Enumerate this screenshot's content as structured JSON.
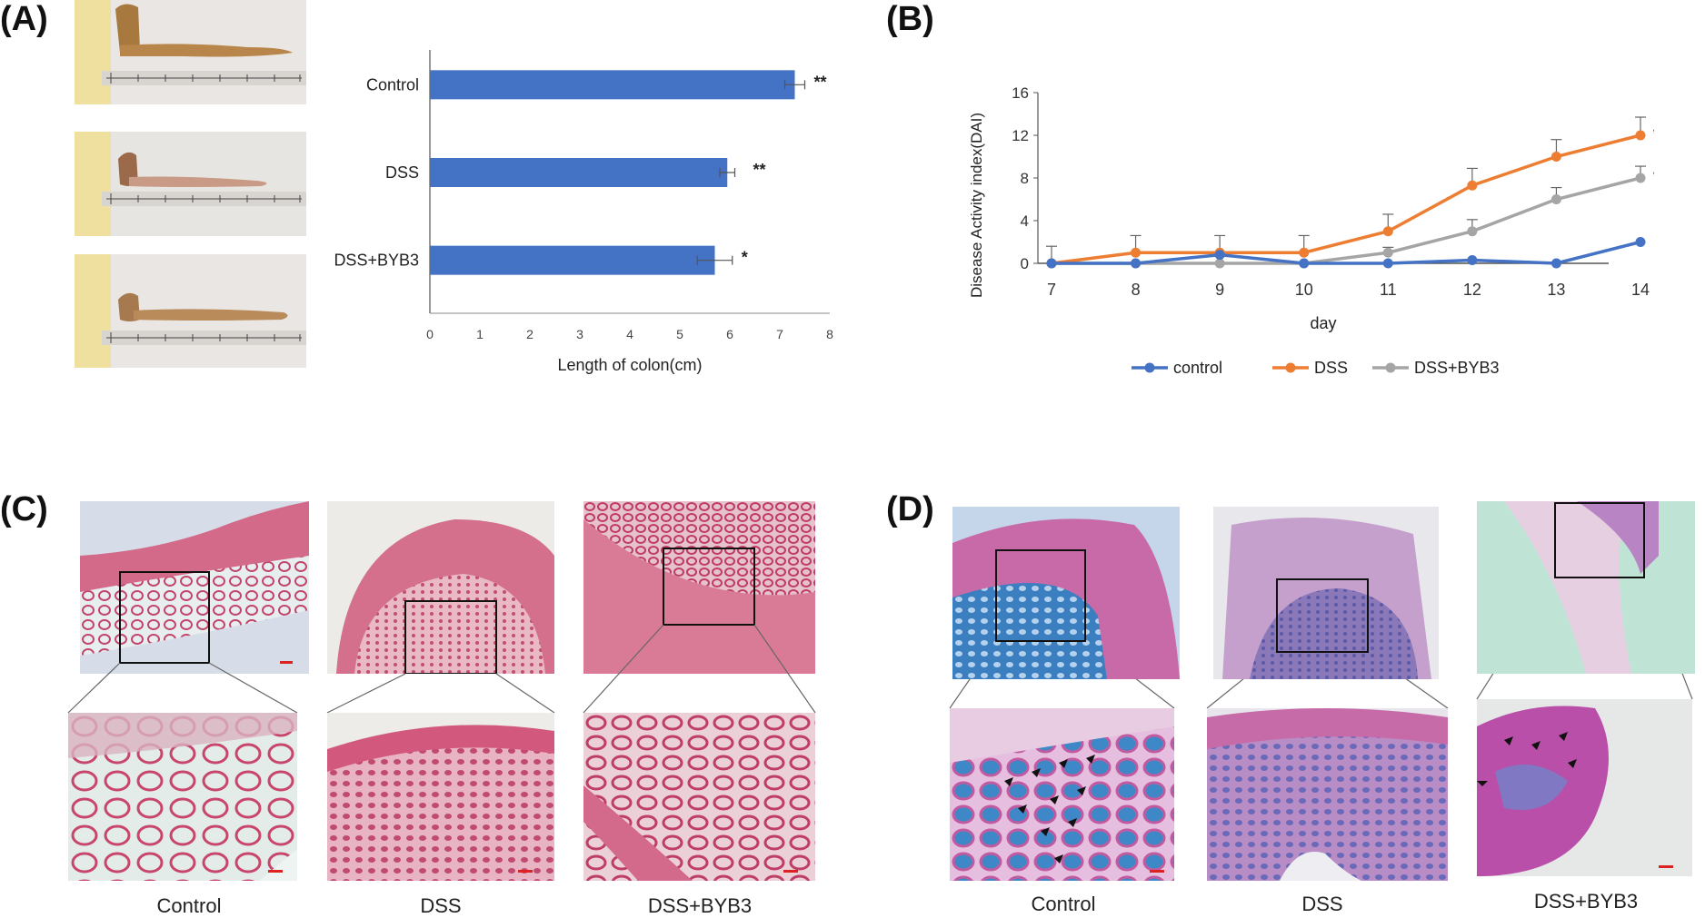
{
  "panels": {
    "a": {
      "label": "(A)"
    },
    "b": {
      "label": "(B)"
    },
    "c": {
      "label": "(C)"
    },
    "d": {
      "label": "(D)"
    }
  },
  "chart_data": [
    {
      "type": "bar",
      "orientation": "horizontal",
      "categories": [
        "Control",
        "DSS",
        "DSS+BYB3"
      ],
      "values": [
        7.3,
        5.95,
        5.7
      ],
      "errors": [
        0.2,
        0.15,
        0.35
      ],
      "significance": [
        "**",
        "**",
        "*"
      ],
      "xlabel": "Length of colon(cm)",
      "ylabel": "",
      "xlim": [
        0,
        8
      ],
      "xticks": [
        "0",
        "1",
        "2",
        "3",
        "4",
        "5",
        "6",
        "7",
        "8"
      ],
      "bar_color": "#4472C4",
      "grid": false
    },
    {
      "type": "line",
      "x": [
        "7",
        "8",
        "9",
        "10",
        "11",
        "12",
        "13",
        "14"
      ],
      "xlabel": "day",
      "ylabel": "Disease Activity index(DAI)",
      "ylim": [
        0,
        16
      ],
      "yticks": [
        "0",
        "4",
        "8",
        "12",
        "16"
      ],
      "legend": "bottom",
      "grid": false,
      "series": [
        {
          "name": "control",
          "color": "#4472C4",
          "values": [
            0,
            0,
            0.8,
            0,
            0,
            0.3,
            0,
            2
          ],
          "errors": [
            0,
            0,
            0,
            0,
            0,
            0,
            0,
            0
          ],
          "significance": ""
        },
        {
          "name": "DSS",
          "color": "#ED7D31",
          "values": [
            0,
            1,
            1,
            1,
            3,
            7.3,
            10,
            12
          ],
          "errors": [
            1.6,
            1.6,
            1.6,
            1.6,
            1.6,
            1.6,
            1.6,
            1.7
          ],
          "significance": "**"
        },
        {
          "name": "DSS+BYB3",
          "color": "#A5A5A5",
          "values": [
            0,
            0,
            0,
            0,
            1,
            3,
            6,
            8
          ],
          "errors": [
            0,
            0,
            0,
            0,
            0.5,
            1.1,
            1.1,
            1.1
          ],
          "significance": "*"
        }
      ]
    }
  ],
  "histology_c": {
    "captions": [
      "Control",
      "DSS",
      "DSS+BYB3"
    ]
  },
  "histology_d": {
    "captions": [
      "Control",
      "DSS",
      "DSS+BYB3"
    ]
  }
}
